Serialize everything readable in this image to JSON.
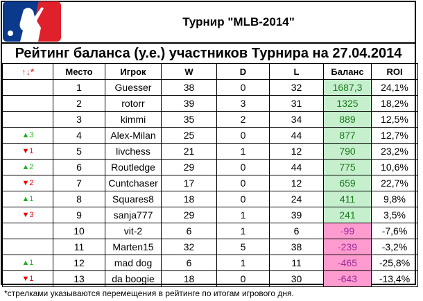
{
  "title": "Турнир \"MLB-2014\"",
  "subtitle": "Рейтинг баланса (у.е.) участников Турнира на 27.04.2014",
  "logo_text": "MLB",
  "headers": {
    "move": "↑↓*",
    "place": "Место",
    "player": "Игрок",
    "w": "W",
    "d": "D",
    "l": "L",
    "balance": "Баланс",
    "roi": "ROI"
  },
  "rows": [
    {
      "move": "",
      "place": "1",
      "player": "Guesser",
      "w": "38",
      "d": "0",
      "l": "32",
      "balance": "1687,3",
      "roi": "24,1%"
    },
    {
      "move": "",
      "place": "2",
      "player": "rotorr",
      "w": "39",
      "d": "3",
      "l": "31",
      "balance": "1325",
      "roi": "18,2%"
    },
    {
      "move": "",
      "place": "3",
      "player": "kimmi",
      "w": "35",
      "d": "2",
      "l": "34",
      "balance": "889",
      "roi": "12,5%"
    },
    {
      "move": "▲3",
      "dir": "up",
      "place": "4",
      "player": "Alex-Milan",
      "w": "25",
      "d": "0",
      "l": "44",
      "balance": "877",
      "roi": "12,7%"
    },
    {
      "move": "▼1",
      "dir": "down",
      "place": "5",
      "player": "livchess",
      "w": "21",
      "d": "1",
      "l": "12",
      "balance": "790",
      "roi": "23,2%"
    },
    {
      "move": "▲2",
      "dir": "up",
      "place": "6",
      "player": "Routledge",
      "w": "29",
      "d": "0",
      "l": "44",
      "balance": "775",
      "roi": "10,6%"
    },
    {
      "move": "▼2",
      "dir": "down",
      "place": "7",
      "player": "Cuntchaser",
      "w": "17",
      "d": "0",
      "l": "12",
      "balance": "659",
      "roi": "22,7%"
    },
    {
      "move": "▲1",
      "dir": "up",
      "place": "8",
      "player": "Squares8",
      "w": "18",
      "d": "0",
      "l": "24",
      "balance": "411",
      "roi": "9,8%"
    },
    {
      "move": "▼3",
      "dir": "down",
      "place": "9",
      "player": "sanja777",
      "w": "29",
      "d": "1",
      "l": "39",
      "balance": "241",
      "roi": "3,5%"
    },
    {
      "move": "",
      "place": "10",
      "player": "vit-2",
      "w": "6",
      "d": "1",
      "l": "6",
      "balance": "-99",
      "roi": "-7,6%"
    },
    {
      "move": "",
      "place": "11",
      "player": "Marten15",
      "w": "32",
      "d": "5",
      "l": "38",
      "balance": "-239",
      "roi": "-3,2%"
    },
    {
      "move": "▲1",
      "dir": "up",
      "place": "12",
      "player": "mad dog",
      "w": "6",
      "d": "1",
      "l": "11",
      "balance": "-465",
      "roi": "-25,8%"
    },
    {
      "move": "▼1",
      "dir": "down",
      "place": "13",
      "player": "da boogie",
      "w": "18",
      "d": "0",
      "l": "30",
      "balance": "-643",
      "roi": "-13,4%"
    }
  ],
  "footnote": "*стрелками указываются перемещения в рейтинге по итогам игрового дня."
}
